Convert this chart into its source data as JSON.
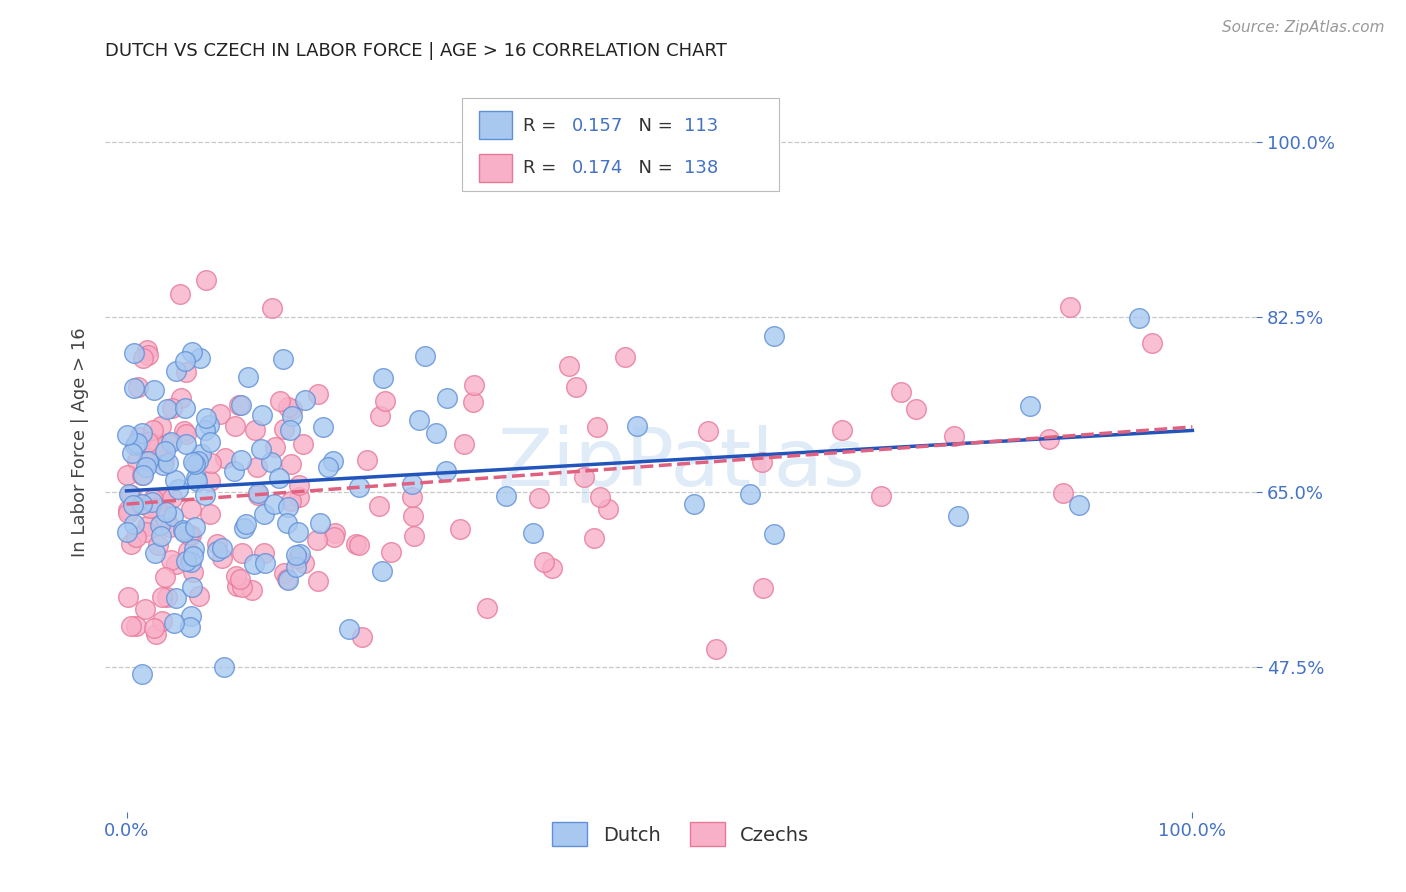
{
  "title": "DUTCH VS CZECH IN LABOR FORCE | AGE > 16 CORRELATION CHART",
  "source": "Source: ZipAtlas.com",
  "ylabel": "In Labor Force | Age > 16",
  "dutch_color": "#a8c8f0",
  "czech_color": "#f8b0c8",
  "dutch_edge_color": "#6090d8",
  "czech_edge_color": "#e87898",
  "dutch_line_color": "#2255bb",
  "czech_line_color": "#e06080",
  "dutch_R": 0.157,
  "dutch_N": 113,
  "czech_R": 0.174,
  "czech_N": 138,
  "legend_blue": "#4472c4",
  "background_color": "#ffffff",
  "grid_color": "#c8c8c8",
  "title_color": "#222222",
  "axis_label_color": "#444444",
  "tick_color": "#4472c4",
  "watermark_color": "#c0d8f0",
  "ytick_positions": [
    0.475,
    0.65,
    0.825,
    1.0
  ],
  "ytick_labels": [
    "47.5%",
    "65.0%",
    "82.5%",
    "100.0%"
  ],
  "xtick_positions": [
    0.0,
    1.0
  ],
  "xtick_labels": [
    "0.0%",
    "100.0%"
  ],
  "ylim_low": 0.33,
  "ylim_high": 1.07,
  "xlim_low": -0.02,
  "xlim_high": 1.06,
  "seed_dutch": 7,
  "seed_czech": 13
}
